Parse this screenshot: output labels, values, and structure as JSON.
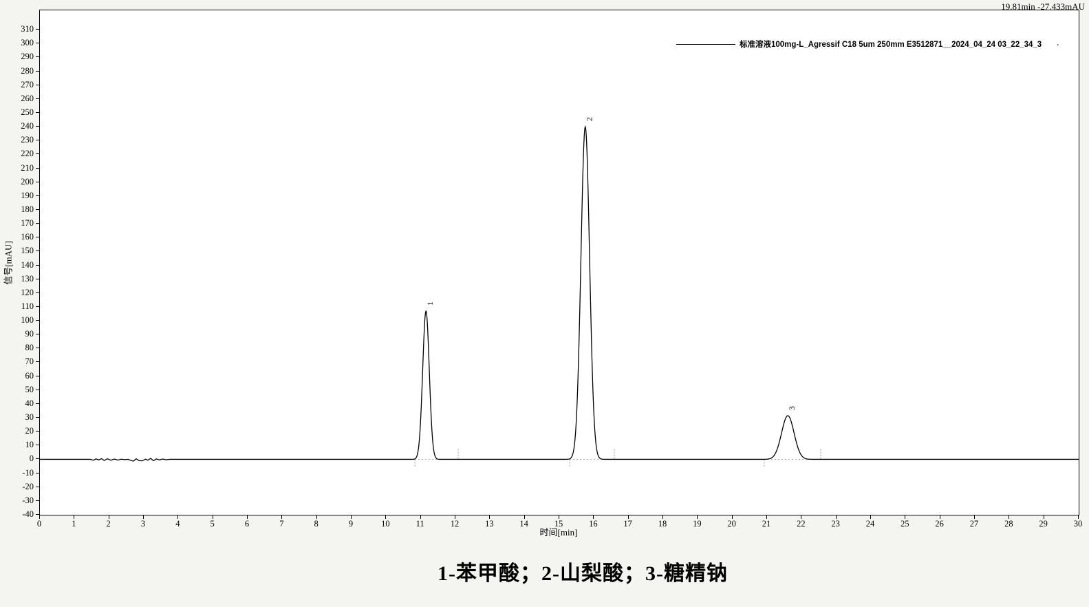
{
  "window": {
    "cursor_readout": "19.81min -27.433mAU"
  },
  "legend": {
    "series_label": "标准溶液100mg-L_Agressif C18 5um 250mm E3512871__2024_04_24 03_22_34_3",
    "trailing_mark": "."
  },
  "axes": {
    "y_label": "信号[mAU]",
    "x_label": "时间[min]",
    "y_ticks": [
      310,
      300,
      290,
      280,
      270,
      260,
      250,
      240,
      230,
      220,
      210,
      200,
      190,
      180,
      170,
      160,
      150,
      140,
      130,
      120,
      110,
      100,
      90,
      80,
      70,
      60,
      50,
      40,
      30,
      20,
      10,
      0,
      -10,
      -20,
      -30,
      -40
    ],
    "x_ticks": [
      0,
      1,
      2,
      3,
      4,
      5,
      6,
      7,
      8,
      9,
      10,
      11,
      12,
      13,
      14,
      15,
      16,
      17,
      18,
      19,
      20,
      21,
      22,
      23,
      24,
      25,
      26,
      27,
      28,
      29,
      30
    ]
  },
  "caption": "1-苯甲酸；2-山梨酸；3-糖精钠",
  "colors": {
    "trace": "#000000",
    "integration_marks": "#999999",
    "integration_baseline": "#aaaaaa",
    "plot_background": "#ffffff",
    "page_background": "#f4f4f1",
    "axis": "#000000"
  },
  "chart_data": {
    "type": "line",
    "title": "",
    "xlabel": "时间[min]",
    "ylabel": "信号[mAU]",
    "xlim": [
      0,
      30
    ],
    "ylim": [
      -40,
      324
    ],
    "x_tick_interval": 1,
    "y_tick_interval": 10,
    "grid": false,
    "legend_position": "top-right",
    "cursor_readout": {
      "time_min": 19.81,
      "signal_mAU": -27.433
    },
    "series": [
      {
        "name": "标准溶液100mg-L_Agressif C18 5um 250mm E3512871__2024_04_24 03_22_34_3",
        "baseline_mAU": 0,
        "peaks": [
          {
            "label": "1",
            "compound": "苯甲酸",
            "retention_min": 11.15,
            "height_mAU": 107,
            "sigma_min": 0.095,
            "integration_start_min": 10.83,
            "integration_end_min": 12.08
          },
          {
            "label": "2",
            "compound": "山梨酸",
            "retention_min": 15.75,
            "height_mAU": 240,
            "sigma_min": 0.125,
            "integration_start_min": 15.3,
            "integration_end_min": 16.59
          },
          {
            "label": "3",
            "compound": "糖精钠",
            "retention_min": 21.6,
            "height_mAU": 31.5,
            "sigma_min": 0.18,
            "integration_start_min": 20.92,
            "integration_end_min": 22.55
          }
        ],
        "noise_points_min_mAU": [
          [
            1.45,
            0
          ],
          [
            1.55,
            -0.6
          ],
          [
            1.62,
            0.3
          ],
          [
            1.7,
            -0.4
          ],
          [
            1.78,
            0.5
          ],
          [
            1.86,
            -0.8
          ],
          [
            1.95,
            0.4
          ],
          [
            2.05,
            -0.6
          ],
          [
            2.15,
            0.2
          ],
          [
            2.25,
            -0.5
          ],
          [
            2.35,
            0.1
          ],
          [
            2.45,
            -0.2
          ],
          [
            2.55,
            0
          ],
          [
            2.62,
            -0.7
          ],
          [
            2.7,
            -1.3
          ],
          [
            2.78,
            0.4
          ],
          [
            2.86,
            -0.9
          ],
          [
            2.95,
            -1.1
          ],
          [
            3.05,
            0.1
          ],
          [
            3.12,
            -0.6
          ],
          [
            3.2,
            0.7
          ],
          [
            3.28,
            -1.0
          ],
          [
            3.36,
            0.3
          ],
          [
            3.45,
            -0.4
          ],
          [
            3.55,
            0.2
          ],
          [
            3.65,
            -0.3
          ],
          [
            3.75,
            0
          ]
        ]
      }
    ]
  }
}
